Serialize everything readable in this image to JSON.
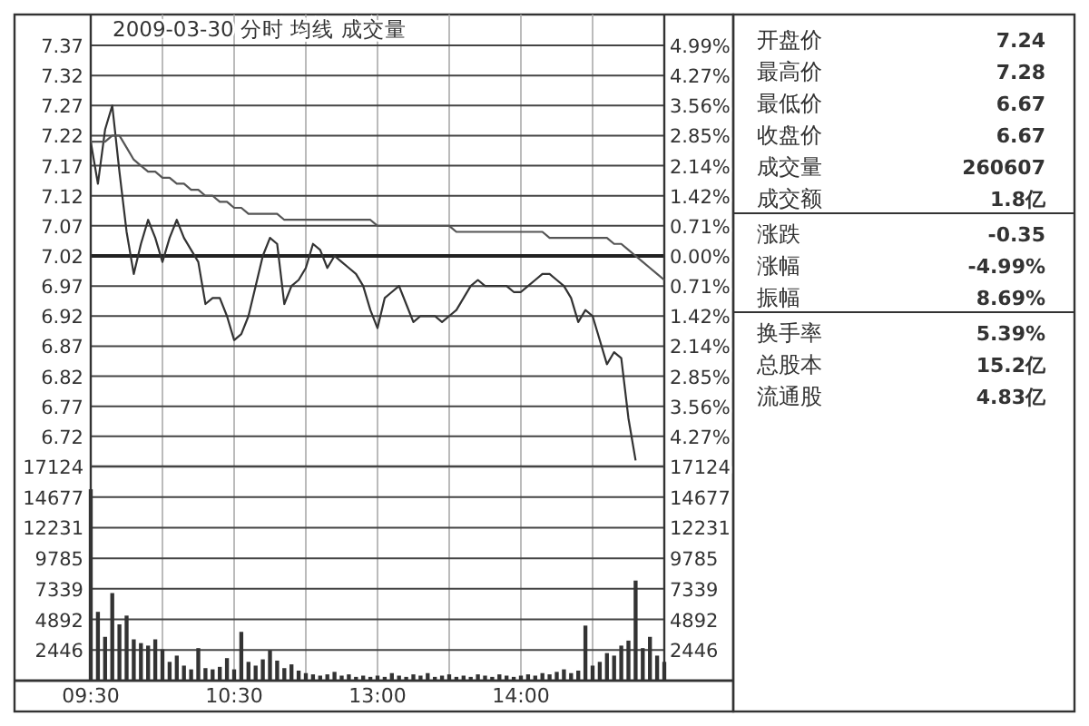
{
  "chart_data": [
    {
      "type": "line",
      "title": "2009-03-30 分时 均线 成交量",
      "grid": true,
      "tick_labels": "y",
      "categories": [
        null,
        null,
        null,
        null,
        null,
        null,
        null,
        null,
        null,
        null,
        null,
        null,
        null,
        null,
        null,
        null,
        null,
        null,
        null,
        null,
        null,
        null,
        null,
        null,
        null,
        null,
        null,
        null,
        null,
        null,
        null,
        null,
        null,
        null,
        null,
        null,
        null,
        null,
        null,
        null,
        null,
        null,
        null,
        null,
        null,
        null,
        null,
        null,
        null,
        null,
        null,
        null,
        null,
        null,
        null,
        null,
        null,
        null,
        null,
        null,
        null,
        null,
        null,
        null,
        null,
        null,
        null,
        null,
        null,
        null,
        null,
        null,
        null,
        null,
        null,
        null,
        null,
        null,
        null,
        null,
        null
      ],
      "ylim": [
        6.67,
        7.37
      ],
      "yticks": [
        6.72,
        6.77,
        6.82,
        6.87,
        6.92,
        6.97,
        7.02,
        7.07,
        7.12,
        7.17,
        7.22,
        7.27,
        7.32,
        7.37
      ],
      "y2lim": [
        -4.99,
        4.99
      ],
      "y2ticks": [
        {
          "value": 4.99,
          "label": "4.99%"
        },
        {
          "value": 4.27,
          "label": "4.27%"
        },
        {
          "value": 3.56,
          "label": "3.56%"
        },
        {
          "value": 2.85,
          "label": "2.85%"
        },
        {
          "value": 2.14,
          "label": "2.14%"
        },
        {
          "value": 1.42,
          "label": "1.42%"
        },
        {
          "value": 0.71,
          "label": "0.71%"
        },
        {
          "value": 0,
          "label": "0.00%"
        },
        {
          "value": -0.71,
          "label": "0.71%"
        },
        {
          "value": -1.42,
          "label": "1.42%"
        },
        {
          "value": -2.14,
          "label": "2.14%"
        },
        {
          "value": -2.85,
          "label": "2.85%"
        },
        {
          "value": -3.56,
          "label": "3.56%"
        },
        {
          "value": -4.27,
          "label": "4.27%"
        }
      ],
      "ref_lines": [
        {
          "axis": "y",
          "value": 7.02,
          "color": "#222222"
        }
      ],
      "series": [
        {
          "color": "#333333",
          "values": [
            7.21,
            7.14,
            7.23,
            7.27,
            7.16,
            7.06,
            6.99,
            7.04,
            7.08,
            7.05,
            7.01,
            7.05,
            7.08,
            7.05,
            7.03,
            7.01,
            6.94,
            6.95,
            6.95,
            6.92,
            6.88,
            6.89,
            6.92,
            6.97,
            7.02,
            7.05,
            7.04,
            6.94,
            6.97,
            6.98,
            7.0,
            7.04,
            7.03,
            7.0,
            7.02,
            7.01,
            7.0,
            6.99,
            6.97,
            6.93,
            6.9,
            6.95,
            6.96,
            6.97,
            6.94,
            6.91,
            6.92,
            6.92,
            6.92,
            6.91,
            6.92,
            6.93,
            6.95,
            6.97,
            6.98,
            6.97,
            6.97,
            6.97,
            6.97,
            6.96,
            6.96,
            6.97,
            6.98,
            6.99,
            6.99,
            6.98,
            6.97,
            6.95,
            6.91,
            6.93,
            6.92,
            6.88,
            6.84,
            6.86,
            6.85,
            6.75,
            6.68,
            null,
            null,
            null,
            null
          ]
        },
        {
          "color": "#555555",
          "values": [
            7.21,
            7.21,
            7.21,
            7.22,
            7.22,
            7.2,
            7.18,
            7.17,
            7.16,
            7.16,
            7.15,
            7.15,
            7.14,
            7.14,
            7.13,
            7.13,
            7.12,
            7.12,
            7.11,
            7.11,
            7.1,
            7.1,
            7.09,
            7.09,
            7.09,
            7.09,
            7.09,
            7.08,
            7.08,
            7.08,
            7.08,
            7.08,
            7.08,
            7.08,
            7.08,
            7.08,
            7.08,
            7.08,
            7.08,
            7.08,
            7.07,
            7.07,
            7.07,
            7.07,
            7.07,
            7.07,
            7.07,
            7.07,
            7.07,
            7.07,
            7.07,
            7.06,
            7.06,
            7.06,
            7.06,
            7.06,
            7.06,
            7.06,
            7.06,
            7.06,
            7.06,
            7.06,
            7.06,
            7.06,
            7.05,
            7.05,
            7.05,
            7.05,
            7.05,
            7.05,
            7.05,
            7.05,
            7.05,
            7.04,
            7.04,
            7.03,
            7.02,
            7.01,
            7.0,
            6.99,
            6.98
          ]
        }
      ]
    },
    {
      "type": "bar",
      "grid": true,
      "color": "#333333",
      "categories": [
        "09:30",
        null,
        null,
        null,
        null,
        null,
        null,
        null,
        null,
        null,
        null,
        null,
        null,
        null,
        null,
        null,
        null,
        null,
        null,
        null,
        "10:30",
        null,
        null,
        null,
        null,
        null,
        null,
        null,
        null,
        null,
        null,
        null,
        null,
        null,
        null,
        null,
        null,
        null,
        null,
        null,
        "13:00",
        null,
        null,
        null,
        null,
        null,
        null,
        null,
        null,
        null,
        null,
        null,
        null,
        null,
        null,
        null,
        null,
        null,
        null,
        null,
        "14:00",
        null,
        null,
        null,
        null,
        null,
        null,
        null,
        null,
        null,
        null,
        null,
        null,
        null,
        null,
        null,
        null,
        null,
        null,
        null,
        null
      ],
      "ylim": [
        0,
        17124
      ],
      "yticks": [
        2446,
        4892,
        7339,
        9785,
        12231,
        14677,
        17124
      ],
      "y2lim": [
        0,
        17124
      ],
      "y2ticks": [
        2446,
        4892,
        7339,
        9785,
        12231,
        14677,
        17124
      ],
      "values": [
        15300,
        5500,
        3500,
        7000,
        4500,
        5200,
        3300,
        3000,
        2800,
        3300,
        2500,
        1500,
        2000,
        1200,
        900,
        2600,
        1000,
        900,
        1100,
        1800,
        900,
        3900,
        1500,
        1200,
        1700,
        2400,
        1600,
        1000,
        1300,
        800,
        600,
        500,
        400,
        500,
        700,
        400,
        500,
        300,
        400,
        300,
        400,
        300,
        600,
        400,
        300,
        500,
        400,
        600,
        300,
        400,
        500,
        300,
        400,
        300,
        500,
        400,
        300,
        500,
        400,
        300,
        400,
        500,
        400,
        600,
        500,
        700,
        900,
        600,
        800,
        4400,
        1200,
        1500,
        2200,
        2000,
        2800,
        3200,
        8000,
        2600,
        3500,
        2000,
        1500
      ]
    },
    {
      "type": "other",
      "categories": [
        "开盘价",
        "最高价",
        "最低价",
        "收盘价",
        "成交量",
        "成交额",
        "涨跌",
        "涨幅",
        "振幅",
        "换手率",
        "总股本",
        "流通股"
      ],
      "value_labels": [
        "7.24",
        "7.28",
        "6.67",
        "6.67",
        "260607",
        "1.8亿",
        "-0.35",
        "-4.99%",
        "8.69%",
        "5.39%",
        "15.2亿",
        "4.83亿"
      ]
    }
  ]
}
